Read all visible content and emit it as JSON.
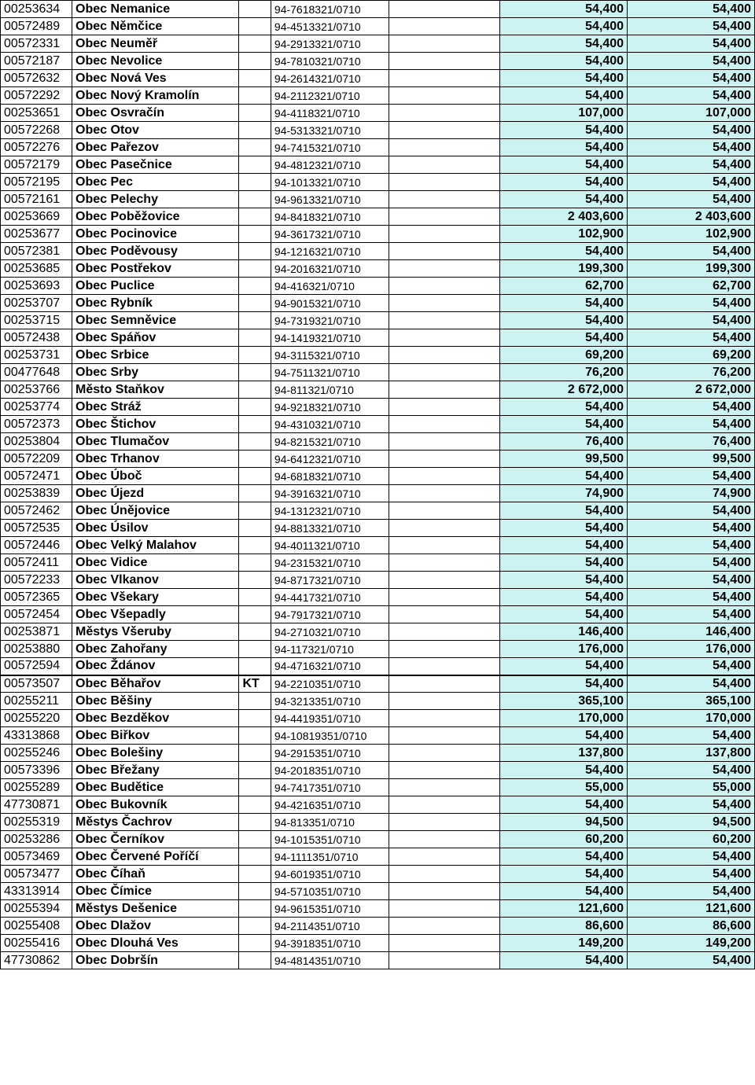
{
  "table": {
    "columns": [
      {
        "key": "id",
        "class": "col-id"
      },
      {
        "key": "name",
        "class": "col-name"
      },
      {
        "key": "tag",
        "class": "col-tag"
      },
      {
        "key": "acct",
        "class": "col-acct"
      },
      {
        "key": "blank",
        "class": "col-blank"
      },
      {
        "key": "v1",
        "class": "col-v1"
      },
      {
        "key": "v2",
        "class": "col-v2"
      }
    ],
    "styling": {
      "highlight_bg": "#ccf2f2",
      "border_color": "#000000",
      "font_bold_cols": [
        "name",
        "tag",
        "v1",
        "v2"
      ],
      "section_break_before_id": "00573507"
    },
    "rows": [
      {
        "id": "00253634",
        "name": "Obec Nemanice",
        "tag": "",
        "acct": "94-7618321/0710",
        "v1": "54,400",
        "v2": "54,400"
      },
      {
        "id": "00572489",
        "name": "Obec Němčice",
        "tag": "",
        "acct": "94-4513321/0710",
        "v1": "54,400",
        "v2": "54,400"
      },
      {
        "id": "00572331",
        "name": "Obec Neuměř",
        "tag": "",
        "acct": "94-2913321/0710",
        "v1": "54,400",
        "v2": "54,400"
      },
      {
        "id": "00572187",
        "name": "Obec Nevolice",
        "tag": "",
        "acct": "94-7810321/0710",
        "v1": "54,400",
        "v2": "54,400"
      },
      {
        "id": "00572632",
        "name": "Obec Nová Ves",
        "tag": "",
        "acct": "94-2614321/0710",
        "v1": "54,400",
        "v2": "54,400"
      },
      {
        "id": "00572292",
        "name": "Obec Nový Kramolín",
        "tag": "",
        "acct": "94-2112321/0710",
        "v1": "54,400",
        "v2": "54,400"
      },
      {
        "id": "00253651",
        "name": "Obec Osvračín",
        "tag": "",
        "acct": "94-4118321/0710",
        "v1": "107,000",
        "v2": "107,000"
      },
      {
        "id": "00572268",
        "name": "Obec Otov",
        "tag": "",
        "acct": "94-5313321/0710",
        "v1": "54,400",
        "v2": "54,400"
      },
      {
        "id": "00572276",
        "name": "Obec Pařezov",
        "tag": "",
        "acct": "94-7415321/0710",
        "v1": "54,400",
        "v2": "54,400"
      },
      {
        "id": "00572179",
        "name": "Obec Pasečnice",
        "tag": "",
        "acct": "94-4812321/0710",
        "v1": "54,400",
        "v2": "54,400"
      },
      {
        "id": "00572195",
        "name": "Obec Pec",
        "tag": "",
        "acct": "94-1013321/0710",
        "v1": "54,400",
        "v2": "54,400"
      },
      {
        "id": "00572161",
        "name": "Obec Pelechy",
        "tag": "",
        "acct": "94-9613321/0710",
        "v1": "54,400",
        "v2": "54,400"
      },
      {
        "id": "00253669",
        "name": "Obec Poběžovice",
        "tag": "",
        "acct": "94-8418321/0710",
        "v1": "2 403,600",
        "v2": "2 403,600"
      },
      {
        "id": "00253677",
        "name": "Obec Pocinovice",
        "tag": "",
        "acct": "94-3617321/0710",
        "v1": "102,900",
        "v2": "102,900"
      },
      {
        "id": "00572381",
        "name": "Obec Poděvousy",
        "tag": "",
        "acct": "94-1216321/0710",
        "v1": "54,400",
        "v2": "54,400"
      },
      {
        "id": "00253685",
        "name": "Obec Postřekov",
        "tag": "",
        "acct": "94-2016321/0710",
        "v1": "199,300",
        "v2": "199,300"
      },
      {
        "id": "00253693",
        "name": "Obec Puclice",
        "tag": "",
        "acct": "94-416321/0710",
        "v1": "62,700",
        "v2": "62,700"
      },
      {
        "id": "00253707",
        "name": "Obec Rybník",
        "tag": "",
        "acct": "94-9015321/0710",
        "v1": "54,400",
        "v2": "54,400"
      },
      {
        "id": "00253715",
        "name": "Obec Semněvice",
        "tag": "",
        "acct": "94-7319321/0710",
        "v1": "54,400",
        "v2": "54,400"
      },
      {
        "id": "00572438",
        "name": "Obec Spáňov",
        "tag": "",
        "acct": "94-1419321/0710",
        "v1": "54,400",
        "v2": "54,400"
      },
      {
        "id": "00253731",
        "name": "Obec Srbice",
        "tag": "",
        "acct": "94-3115321/0710",
        "v1": "69,200",
        "v2": "69,200"
      },
      {
        "id": "00477648",
        "name": "Obec Srby",
        "tag": "",
        "acct": "94-7511321/0710",
        "v1": "76,200",
        "v2": "76,200"
      },
      {
        "id": "00253766",
        "name": "Město Staňkov",
        "tag": "",
        "acct": "94-811321/0710",
        "v1": "2 672,000",
        "v2": "2 672,000"
      },
      {
        "id": "00253774",
        "name": "Obec Stráž",
        "tag": "",
        "acct": "94-9218321/0710",
        "v1": "54,400",
        "v2": "54,400"
      },
      {
        "id": "00572373",
        "name": "Obec Štichov",
        "tag": "",
        "acct": "94-4310321/0710",
        "v1": "54,400",
        "v2": "54,400"
      },
      {
        "id": "00253804",
        "name": "Obec Tlumačov",
        "tag": "",
        "acct": "94-8215321/0710",
        "v1": "76,400",
        "v2": "76,400"
      },
      {
        "id": "00572209",
        "name": "Obec Trhanov",
        "tag": "",
        "acct": "94-6412321/0710",
        "v1": "99,500",
        "v2": "99,500"
      },
      {
        "id": "00572471",
        "name": "Obec Úboč",
        "tag": "",
        "acct": "94-6818321/0710",
        "v1": "54,400",
        "v2": "54,400"
      },
      {
        "id": "00253839",
        "name": "Obec Újezd",
        "tag": "",
        "acct": "94-3916321/0710",
        "v1": "74,900",
        "v2": "74,900"
      },
      {
        "id": "00572462",
        "name": "Obec Únějovice",
        "tag": "",
        "acct": "94-1312321/0710",
        "v1": "54,400",
        "v2": "54,400"
      },
      {
        "id": "00572535",
        "name": "Obec Úsilov",
        "tag": "",
        "acct": "94-8813321/0710",
        "v1": "54,400",
        "v2": "54,400"
      },
      {
        "id": "00572446",
        "name": "Obec Velký Malahov",
        "tag": "",
        "acct": "94-4011321/0710",
        "v1": "54,400",
        "v2": "54,400"
      },
      {
        "id": "00572411",
        "name": "Obec Vidice",
        "tag": "",
        "acct": "94-2315321/0710",
        "v1": "54,400",
        "v2": "54,400"
      },
      {
        "id": "00572233",
        "name": "Obec Vlkanov",
        "tag": "",
        "acct": "94-8717321/0710",
        "v1": "54,400",
        "v2": "54,400"
      },
      {
        "id": "00572365",
        "name": "Obec Všekary",
        "tag": "",
        "acct": "94-4417321/0710",
        "v1": "54,400",
        "v2": "54,400"
      },
      {
        "id": "00572454",
        "name": "Obec Všepadly",
        "tag": "",
        "acct": "94-7917321/0710",
        "v1": "54,400",
        "v2": "54,400"
      },
      {
        "id": "00253871",
        "name": "Městys Všeruby",
        "tag": "",
        "acct": "94-2710321/0710",
        "v1": "146,400",
        "v2": "146,400"
      },
      {
        "id": "00253880",
        "name": "Obec Zahořany",
        "tag": "",
        "acct": "94-117321/0710",
        "v1": "176,000",
        "v2": "176,000"
      },
      {
        "id": "00572594",
        "name": "Obec Ždánov",
        "tag": "",
        "acct": "94-4716321/0710",
        "v1": "54,400",
        "v2": "54,400"
      },
      {
        "id": "00573507",
        "name": "Obec Běhařov",
        "tag": "KT",
        "acct": "94-2210351/0710",
        "v1": "54,400",
        "v2": "54,400"
      },
      {
        "id": "00255211",
        "name": "Obec Běšiny",
        "tag": "",
        "acct": "94-3213351/0710",
        "v1": "365,100",
        "v2": "365,100"
      },
      {
        "id": "00255220",
        "name": "Obec Bezděkov",
        "tag": "",
        "acct": "94-4419351/0710",
        "v1": "170,000",
        "v2": "170,000"
      },
      {
        "id": "43313868",
        "name": "Obec Biřkov",
        "tag": "",
        "acct": "94-10819351/0710",
        "v1": "54,400",
        "v2": "54,400"
      },
      {
        "id": "00255246",
        "name": "Obec Bolešiny",
        "tag": "",
        "acct": "94-2915351/0710",
        "v1": "137,800",
        "v2": "137,800"
      },
      {
        "id": "00573396",
        "name": "Obec Břežany",
        "tag": "",
        "acct": "94-2018351/0710",
        "v1": "54,400",
        "v2": "54,400"
      },
      {
        "id": "00255289",
        "name": "Obec Budětice",
        "tag": "",
        "acct": "94-7417351/0710",
        "v1": "55,000",
        "v2": "55,000"
      },
      {
        "id": "47730871",
        "name": "Obec Bukovník",
        "tag": "",
        "acct": "94-4216351/0710",
        "v1": "54,400",
        "v2": "54,400"
      },
      {
        "id": "00255319",
        "name": "Městys Čachrov",
        "tag": "",
        "acct": "94-813351/0710",
        "v1": "94,500",
        "v2": "94,500"
      },
      {
        "id": "00253286",
        "name": "Obec Černíkov",
        "tag": "",
        "acct": "94-1015351/0710",
        "v1": "60,200",
        "v2": "60,200"
      },
      {
        "id": "00573469",
        "name": "Obec Červené Poříčí",
        "tag": "",
        "acct": "94-1111351/0710",
        "v1": "54,400",
        "v2": "54,400"
      },
      {
        "id": "00573477",
        "name": "Obec Číhaň",
        "tag": "",
        "acct": "94-6019351/0710",
        "v1": "54,400",
        "v2": "54,400"
      },
      {
        "id": "43313914",
        "name": "Obec Čímice",
        "tag": "",
        "acct": "94-5710351/0710",
        "v1": "54,400",
        "v2": "54,400"
      },
      {
        "id": "00255394",
        "name": "Městys Dešenice",
        "tag": "",
        "acct": "94-9615351/0710",
        "v1": "121,600",
        "v2": "121,600"
      },
      {
        "id": "00255408",
        "name": "Obec Dlažov",
        "tag": "",
        "acct": "94-2114351/0710",
        "v1": "86,600",
        "v2": "86,600"
      },
      {
        "id": "00255416",
        "name": "Obec Dlouhá Ves",
        "tag": "",
        "acct": "94-3918351/0710",
        "v1": "149,200",
        "v2": "149,200"
      },
      {
        "id": "47730862",
        "name": "Obec Dobršín",
        "tag": "",
        "acct": "94-4814351/0710",
        "v1": "54,400",
        "v2": "54,400"
      }
    ]
  }
}
